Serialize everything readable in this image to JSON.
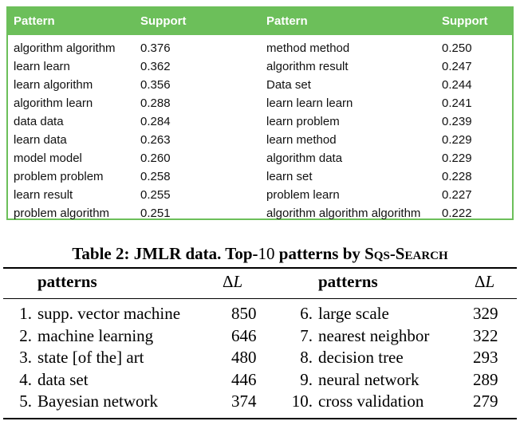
{
  "support_table": {
    "headers": [
      "Pattern",
      "Support",
      "Pattern",
      "Support"
    ],
    "rows": [
      [
        "algorithm algorithm",
        "0.376",
        "method method",
        "0.250"
      ],
      [
        "learn learn",
        "0.362",
        "algorithm result",
        "0.247"
      ],
      [
        "learn algorithm",
        "0.356",
        "Data set",
        "0.244"
      ],
      [
        "algorithm learn",
        "0.288",
        "learn learn learn",
        "0.241"
      ],
      [
        "data data",
        "0.284",
        "learn problem",
        "0.239"
      ],
      [
        "learn data",
        "0.263",
        "learn method",
        "0.229"
      ],
      [
        "model model",
        "0.260",
        "algorithm data",
        "0.229"
      ],
      [
        "problem problem",
        "0.258",
        "learn set",
        "0.228"
      ],
      [
        "learn result",
        "0.255",
        "problem learn",
        "0.227"
      ],
      [
        "problem algorithm",
        "0.251",
        "algorithm algorithm algorithm",
        "0.222"
      ]
    ],
    "header_color": "#6cbf5a"
  },
  "caption": {
    "prefix": "Table 2: JMLR data. Top-",
    "number": "10",
    "middle": " patterns by ",
    "method": "Sqs-Search"
  },
  "dl_table": {
    "headers": {
      "patterns_left": "patterns",
      "delta_left": "L",
      "patterns_right": "patterns",
      "delta_right": "L",
      "delta_symbol": "Δ"
    },
    "rows": [
      [
        "1.",
        "supp. vector machine",
        "850",
        "6.",
        "large scale",
        "329"
      ],
      [
        "2.",
        "machine learning",
        "646",
        "7.",
        "nearest neighbor",
        "322"
      ],
      [
        "3.",
        "state [of the] art",
        "480",
        "8.",
        "decision tree",
        "293"
      ],
      [
        "4.",
        "data set",
        "446",
        "9.",
        "neural network",
        "289"
      ],
      [
        "5.",
        "Bayesian network",
        "374",
        "10.",
        "cross validation",
        "279"
      ]
    ]
  }
}
